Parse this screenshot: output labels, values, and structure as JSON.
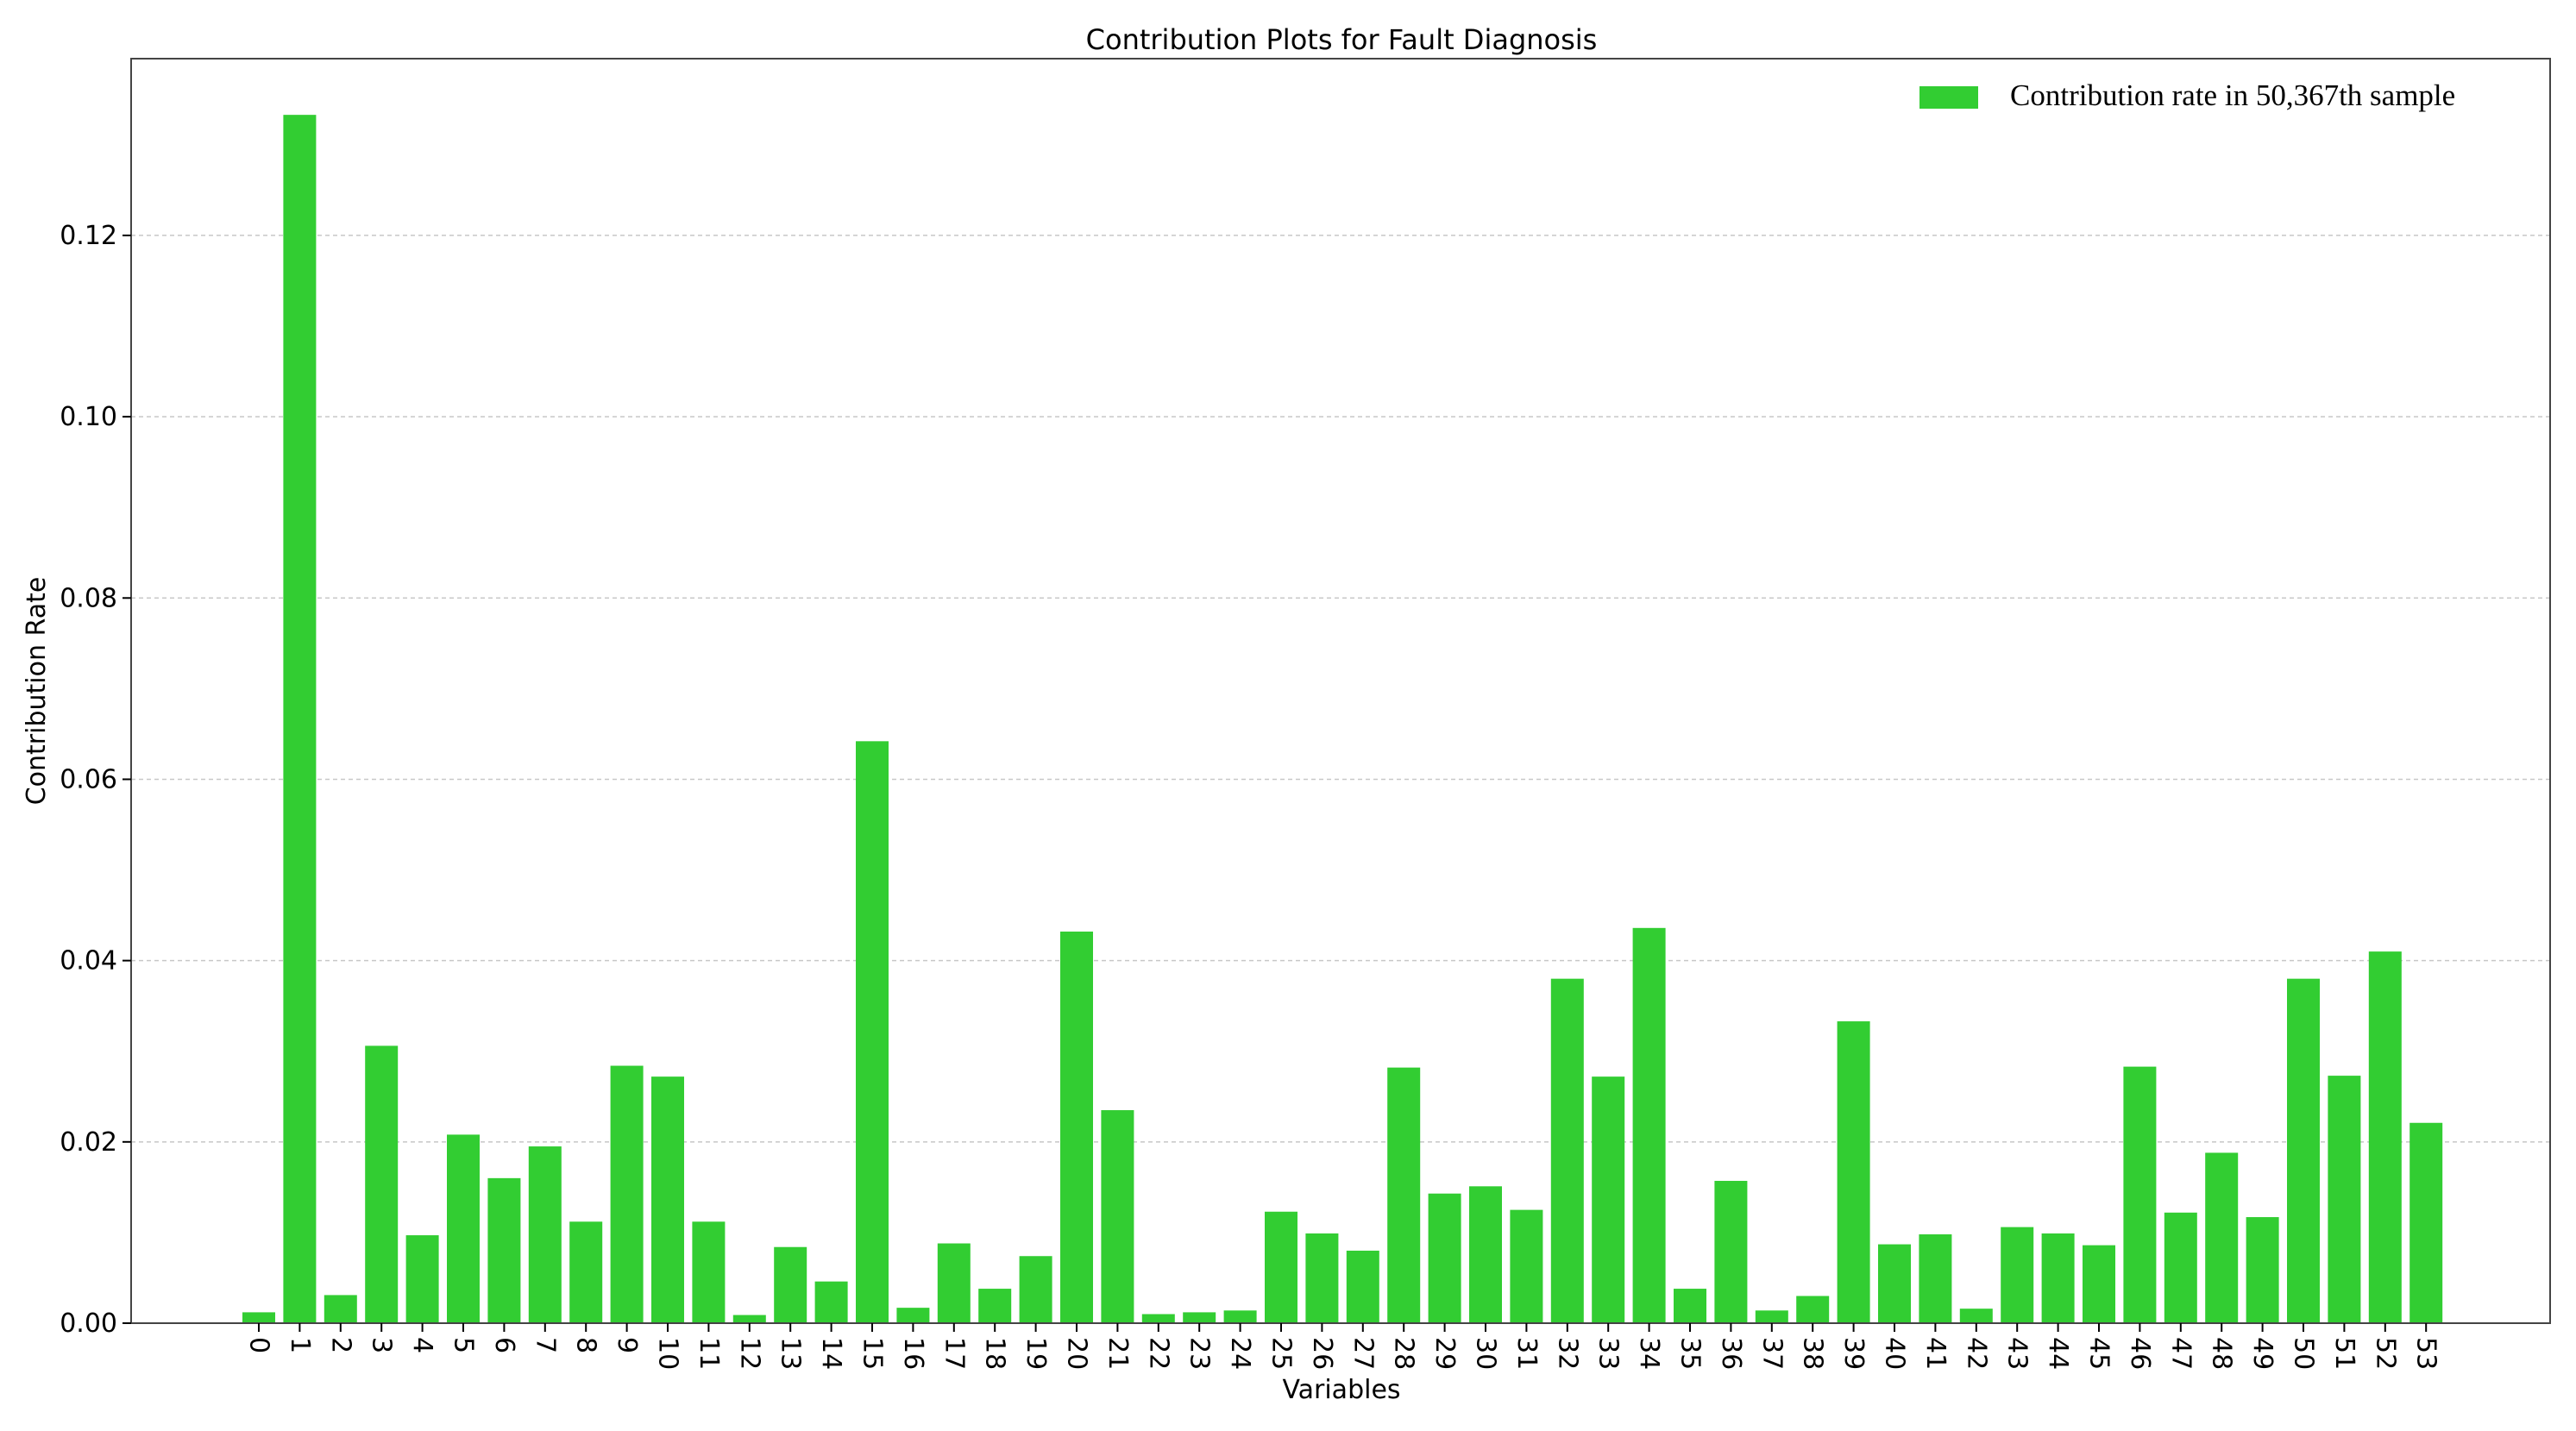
{
  "chart_data": {
    "type": "bar",
    "title": "Contribution Plots for Fault Diagnosis",
    "xlabel": "Variables",
    "ylabel": "Contribution Rate",
    "ylim": [
      0,
      0.1395
    ],
    "yticks": [
      "0.00",
      "0.02",
      "0.04",
      "0.06",
      "0.08",
      "0.10",
      "0.12"
    ],
    "grid": "horizontal dashed",
    "legend_position": "upper right",
    "bar_color": "#32cd32",
    "categories": [
      "0",
      "1",
      "2",
      "3",
      "4",
      "5",
      "6",
      "7",
      "8",
      "9",
      "10",
      "11",
      "12",
      "13",
      "14",
      "15",
      "16",
      "17",
      "18",
      "19",
      "20",
      "21",
      "22",
      "23",
      "24",
      "25",
      "26",
      "27",
      "28",
      "29",
      "30",
      "31",
      "32",
      "33",
      "34",
      "35",
      "36",
      "37",
      "38",
      "39",
      "40",
      "41",
      "42",
      "43",
      "44",
      "45",
      "46",
      "47",
      "48",
      "49",
      "50",
      "51",
      "52",
      "53"
    ],
    "series": [
      {
        "name": "Contribution rate in 50,367th sample",
        "values": [
          0.0012,
          0.1333,
          0.0031,
          0.0306,
          0.0097,
          0.0208,
          0.016,
          0.0195,
          0.0112,
          0.0284,
          0.0272,
          0.0112,
          0.0009,
          0.0084,
          0.0046,
          0.0642,
          0.0017,
          0.0088,
          0.0038,
          0.0074,
          0.0432,
          0.0235,
          0.001,
          0.0012,
          0.0014,
          0.0123,
          0.0099,
          0.008,
          0.0282,
          0.0143,
          0.0151,
          0.0125,
          0.038,
          0.0272,
          0.0436,
          0.0038,
          0.0157,
          0.0014,
          0.003,
          0.0333,
          0.0087,
          0.0098,
          0.0016,
          0.0106,
          0.0099,
          0.0086,
          0.0283,
          0.0122,
          0.0188,
          0.0117,
          0.038,
          0.0273,
          0.041,
          0.0221
        ]
      }
    ]
  }
}
